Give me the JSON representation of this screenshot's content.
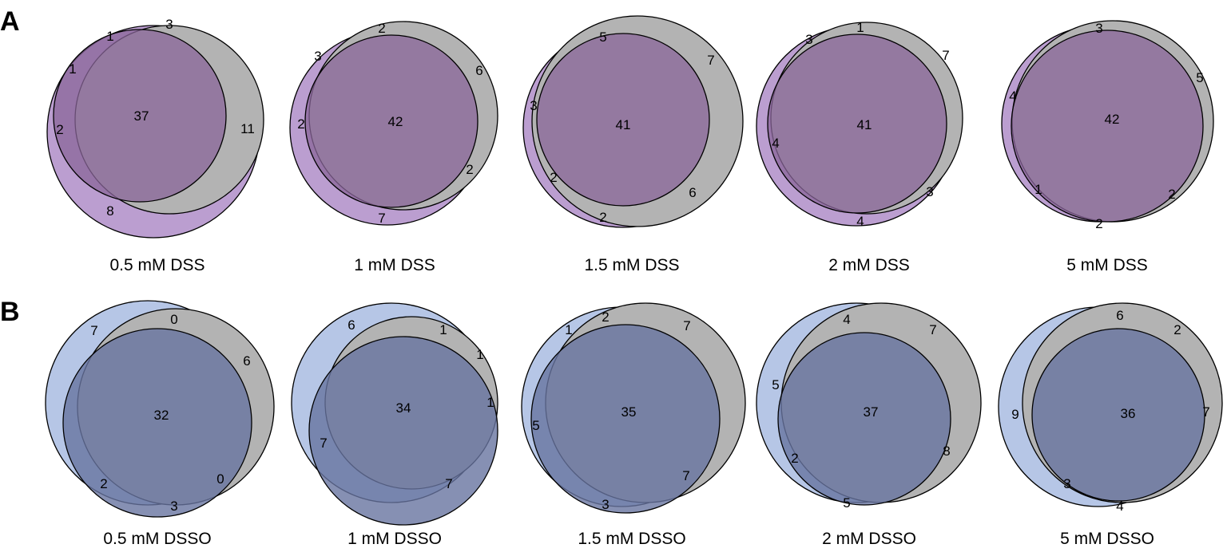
{
  "colors": {
    "purple_light": "#bb9ed0",
    "purple_dark": "#8a6699",
    "blue_light": "#b6c6e6",
    "blue_dark": "#6874a0",
    "gray": "#b3b3b3"
  },
  "panels": [
    {
      "letter": "A",
      "theme": "purple",
      "diagrams": [
        {
          "caption": "0.5 mM DSS",
          "counts": [
            "3",
            "1",
            "1",
            "37",
            "2",
            "11",
            "8"
          ]
        },
        {
          "caption": "1 mM DSS",
          "counts": [
            "2",
            "3",
            "6",
            "42",
            "2",
            "2",
            "7"
          ]
        },
        {
          "caption": "1.5 mM DSS",
          "counts": [
            "5",
            "7",
            "3",
            "41",
            "2",
            "6",
            "2"
          ]
        },
        {
          "caption": "2 mM DSS",
          "counts": [
            "3",
            "1",
            "7",
            "41",
            "4",
            "3",
            "4"
          ]
        },
        {
          "caption": "5 mM DSS",
          "counts": [
            "3",
            "5",
            "4",
            "42",
            "1",
            "2",
            "2"
          ]
        }
      ]
    },
    {
      "letter": "B",
      "theme": "blue",
      "diagrams": [
        {
          "caption": "0.5 mM DSSO",
          "counts": [
            "0",
            "7",
            "6",
            "32",
            "2",
            "0",
            "3"
          ]
        },
        {
          "caption": "1 mM DSSO",
          "counts": [
            "6",
            "1",
            "1",
            "34",
            "1",
            "7",
            "7"
          ]
        },
        {
          "caption": "1.5 mM DSSO",
          "counts": [
            "1",
            "2",
            "7",
            "35",
            "5",
            "7",
            "3"
          ]
        },
        {
          "caption": "2 mM DSSO",
          "counts": [
            "4",
            "7",
            "5",
            "37",
            "2",
            "8",
            "5"
          ]
        },
        {
          "caption": "5 mM DSSO",
          "counts": [
            "6",
            "2",
            "9",
            "36",
            "7",
            "3",
            "4"
          ]
        }
      ]
    }
  ]
}
